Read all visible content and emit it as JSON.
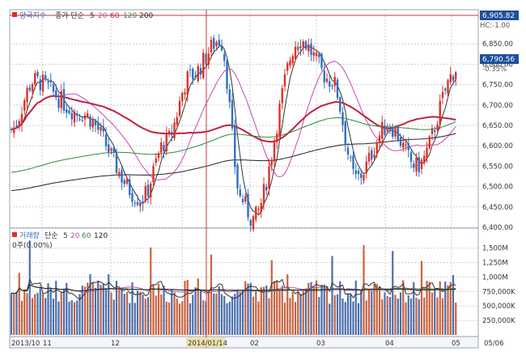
{
  "colors": {
    "background": "#ffffff",
    "frame": "#9aa3b5",
    "grid": "#c9ced8",
    "axis_text": "#333333",
    "up": "#d9322b",
    "down": "#2f6fbf",
    "ma5": "#333333",
    "ma20": "#c24bb3",
    "ma60": "#c0213e",
    "ma120": "#2e8a3a",
    "ma200": "#222222",
    "highlight_line": "#c23a3a",
    "price_box_bg": "#1f4f99",
    "price_box_fg": "#ffffff",
    "date_box_bg": "#efe2a8"
  },
  "price_panel": {
    "legend": {
      "title": "양국지수",
      "ma_label": "종가 단순",
      "periods": [
        "5",
        "20",
        "60",
        "120",
        "200"
      ]
    },
    "high_marker": "6,905.82",
    "current_price": "6,790.56",
    "change_pct": "-0.35%",
    "change_label": "HC:-1.00",
    "y_ticks": [
      "6,850.00",
      "6,800.00",
      "6,750.00",
      "6,700.00",
      "6,650.00",
      "6,600.00",
      "6,550.00",
      "6,500.00",
      "6,450.00",
      "6,400.00"
    ]
  },
  "volume_panel": {
    "legend": {
      "title": "거래량",
      "ma_label": "단순",
      "periods": [
        "5",
        "20",
        "60",
        "120"
      ]
    },
    "sub_label": "0주(0.00%)",
    "y_ticks": [
      "1,500M",
      "1,250M",
      "1,000M",
      "750,000K",
      "500,000K",
      "250,000K"
    ]
  },
  "x_axis": {
    "labels": [
      "2013/10",
      "11",
      "12",
      "2014/01/14",
      "02",
      "03",
      "04",
      "05",
      "05/06"
    ],
    "crosshair_date": "2014/01/14"
  },
  "chart_data": {
    "type": "candlestick",
    "price_range": [
      6400,
      6910
    ],
    "volume_range": [
      0,
      1650000000
    ],
    "moving_averages": [
      "MA5",
      "MA20",
      "MA60",
      "MA120",
      "MA200"
    ],
    "close_anchors": [
      {
        "date": "2013/10",
        "close": 6640
      },
      {
        "date": "2013/10",
        "close": 6760
      },
      {
        "date": "11",
        "close": 6680
      },
      {
        "date": "12",
        "close": 6470
      },
      {
        "date": "12",
        "close": 6610
      },
      {
        "date": "2014/01",
        "close": 6770
      },
      {
        "date": "2014/01/14",
        "close": 6860
      },
      {
        "date": "02",
        "close": 6470
      },
      {
        "date": "02",
        "close": 6420
      },
      {
        "date": "03",
        "close": 6860
      },
      {
        "date": "03",
        "close": 6760
      },
      {
        "date": "04",
        "close": 6520
      },
      {
        "date": "04",
        "close": 6650
      },
      {
        "date": "05",
        "close": 6550
      },
      {
        "date": "05",
        "close": 6790
      }
    ],
    "volume_level_typical": 750000000,
    "volume_peak": 1550000000
  }
}
